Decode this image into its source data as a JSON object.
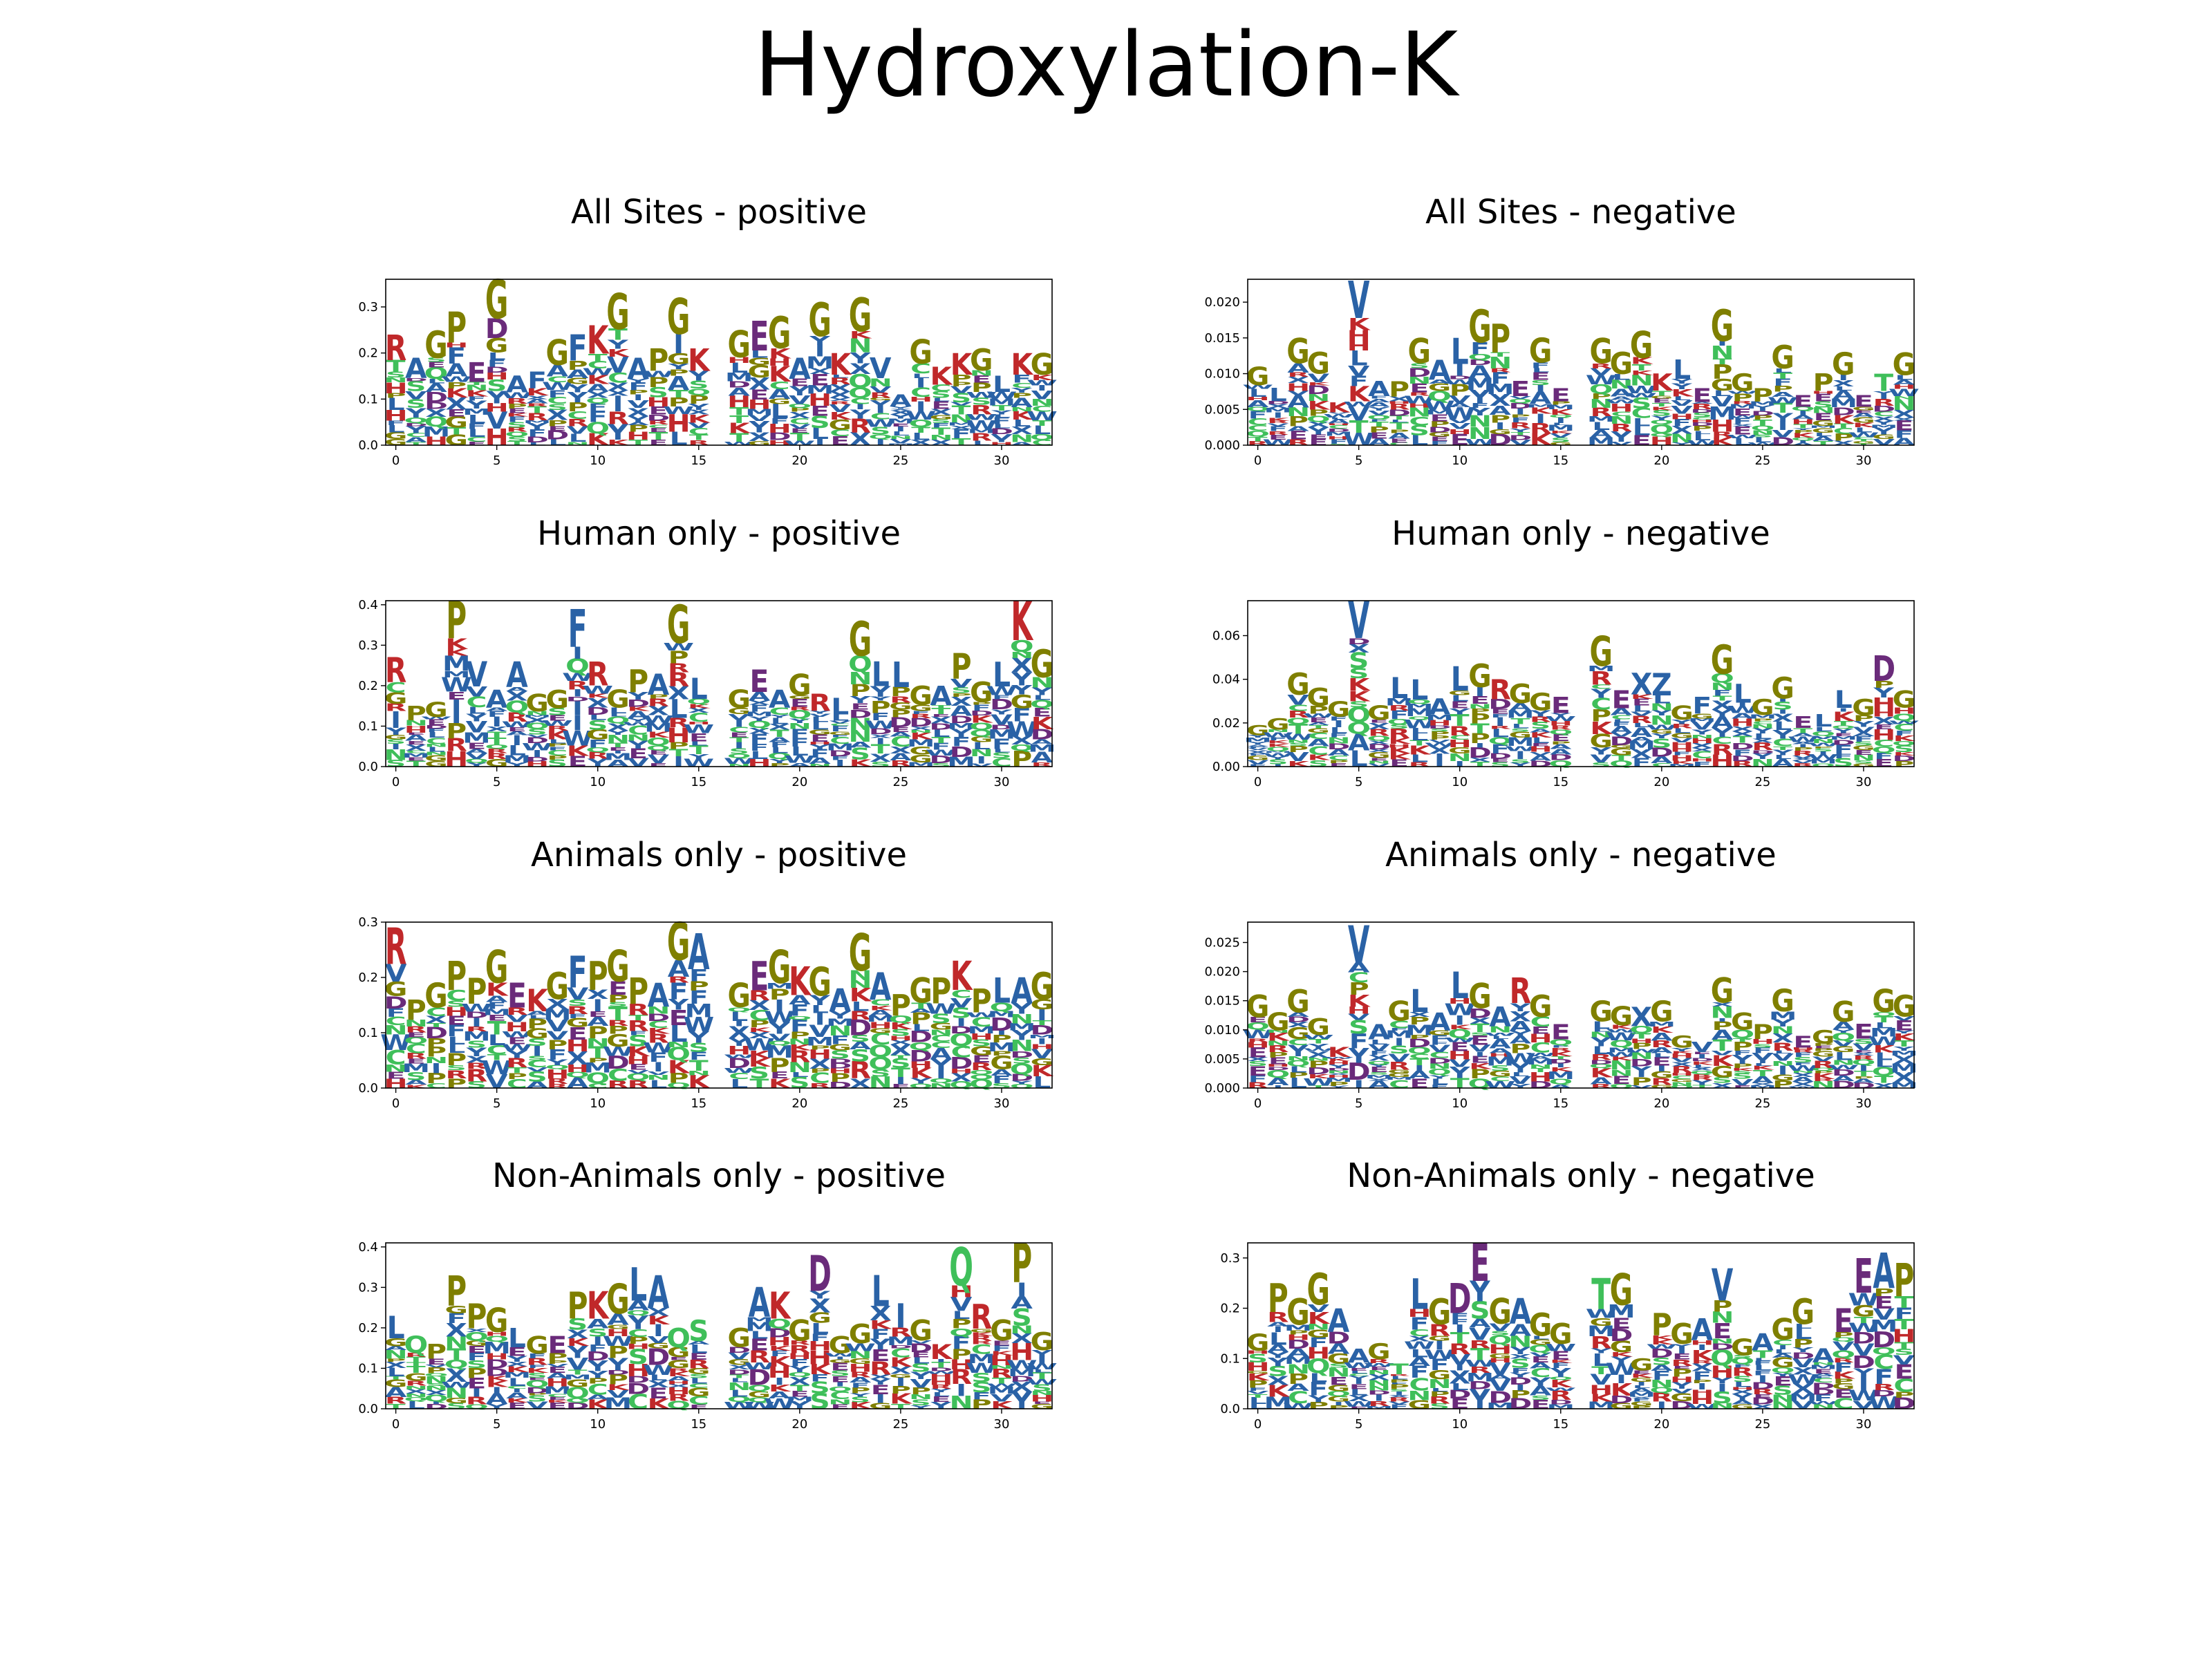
{
  "figure": {
    "title": "Hydroxylation-K",
    "x_ticks": [
      0,
      5,
      10,
      15,
      20,
      25,
      30
    ],
    "x_range": [
      -0.5,
      32.5
    ],
    "positions": 33,
    "gap_position": 16
  },
  "colors": {
    "G": "#7f7f00",
    "P": "#7f7f00",
    "E": "#6a2b7a",
    "D": "#6a2b7a",
    "K": "#c0282a",
    "R": "#c0282a",
    "H": "#c0282a",
    "A": "#2a62a6",
    "V": "#2a62a6",
    "L": "#2a62a6",
    "I": "#2a62a6",
    "F": "#2a62a6",
    "M": "#2a62a6",
    "W": "#2a62a6",
    "Y": "#2a62a6",
    "S": "#3fbf5a",
    "T": "#3fbf5a",
    "C": "#3fbf5a",
    "N": "#3fbf5a",
    "Q": "#3fbf5a",
    "X": "#2a62a6"
  },
  "chart_data": [
    {
      "type": "logo",
      "title": "All Sites - positive",
      "ylim": [
        0,
        0.36
      ],
      "yticks": [
        0.0,
        0.1,
        0.2,
        0.3
      ],
      "ytick_labels": [
        "0.0",
        "0.1",
        "0.2",
        "0.3"
      ],
      "seed": 11,
      "top_letters": [
        "R",
        "A",
        "G",
        "P",
        "E",
        "G",
        "A",
        "F",
        "G",
        "F",
        "K",
        "G",
        "A",
        "P",
        "G",
        "K",
        "",
        "G",
        "E",
        "G",
        "A",
        "G",
        "K",
        "G",
        "V",
        "A",
        "G",
        "K",
        "K",
        "G",
        "L",
        "K",
        "G"
      ],
      "heights": [
        0.24,
        0.19,
        0.25,
        0.29,
        0.18,
        0.36,
        0.15,
        0.16,
        0.23,
        0.24,
        0.26,
        0.33,
        0.19,
        0.21,
        0.32,
        0.21,
        0,
        0.25,
        0.27,
        0.28,
        0.19,
        0.31,
        0.2,
        0.32,
        0.19,
        0.11,
        0.23,
        0.17,
        0.2,
        0.21,
        0.15,
        0.2,
        0.2
      ]
    },
    {
      "type": "logo",
      "title": "All Sites - negative",
      "ylim": [
        0,
        0.0232
      ],
      "yticks": [
        0.0,
        0.005,
        0.01,
        0.015,
        0.02
      ],
      "ytick_labels": [
        "0.000",
        "0.005",
        "0.010",
        "0.015",
        "0.020"
      ],
      "seed": 23,
      "top_letters": [
        "G",
        "L",
        "G",
        "G",
        "K",
        "V",
        "A",
        "P",
        "G",
        "A",
        "L",
        "G",
        "P",
        "E",
        "G",
        "E",
        "",
        "G",
        "G",
        "G",
        "K",
        "L",
        "E",
        "G",
        "G",
        "P",
        "G",
        "E",
        "P",
        "G",
        "E",
        "T",
        "G"
      ],
      "heights": [
        0.011,
        0.008,
        0.015,
        0.013,
        0.006,
        0.023,
        0.009,
        0.009,
        0.015,
        0.012,
        0.015,
        0.019,
        0.017,
        0.009,
        0.015,
        0.008,
        0,
        0.015,
        0.013,
        0.016,
        0.01,
        0.012,
        0.008,
        0.019,
        0.01,
        0.008,
        0.014,
        0.007,
        0.01,
        0.013,
        0.007,
        0.01,
        0.013
      ]
    },
    {
      "type": "logo",
      "title": "Human only - positive",
      "ylim": [
        0,
        0.41
      ],
      "yticks": [
        0.0,
        0.1,
        0.2,
        0.3,
        0.4
      ],
      "ytick_labels": [
        "0.0",
        "0.1",
        "0.2",
        "0.3",
        "0.4"
      ],
      "seed": 37,
      "top_letters": [
        "R",
        "P",
        "G",
        "P",
        "V",
        "A",
        "A",
        "G",
        "G",
        "F",
        "R",
        "G",
        "P",
        "A",
        "G",
        "L",
        "",
        "G",
        "E",
        "A",
        "G",
        "R",
        "L",
        "G",
        "L",
        "L",
        "G",
        "A",
        "P",
        "G",
        "L",
        "K",
        "G"
      ],
      "heights": [
        0.27,
        0.15,
        0.16,
        0.41,
        0.26,
        0.19,
        0.26,
        0.18,
        0.19,
        0.39,
        0.26,
        0.19,
        0.24,
        0.23,
        0.4,
        0.22,
        0,
        0.19,
        0.24,
        0.19,
        0.23,
        0.18,
        0.17,
        0.36,
        0.26,
        0.26,
        0.2,
        0.2,
        0.28,
        0.21,
        0.26,
        0.41,
        0.29
      ]
    },
    {
      "type": "logo",
      "title": "Human only - negative",
      "ylim": [
        0,
        0.076
      ],
      "yticks": [
        0.0,
        0.02,
        0.04,
        0.06
      ],
      "ytick_labels": [
        "0.00",
        "0.02",
        "0.04",
        "0.06"
      ],
      "seed": 41,
      "top_letters": [
        "G",
        "G",
        "G",
        "G",
        "G",
        "V",
        "G",
        "L",
        "L",
        "A",
        "L",
        "G",
        "R",
        "G",
        "G",
        "E",
        "",
        "G",
        "E",
        "X",
        "Z",
        "G",
        "F",
        "G",
        "L",
        "G",
        "G",
        "E",
        "L",
        "L",
        "G",
        "D",
        "G"
      ],
      "heights": [
        0.019,
        0.022,
        0.043,
        0.036,
        0.03,
        0.076,
        0.028,
        0.041,
        0.04,
        0.031,
        0.046,
        0.047,
        0.04,
        0.038,
        0.034,
        0.032,
        0,
        0.06,
        0.035,
        0.043,
        0.043,
        0.028,
        0.032,
        0.056,
        0.038,
        0.031,
        0.041,
        0.023,
        0.024,
        0.035,
        0.031,
        0.051,
        0.035
      ]
    },
    {
      "type": "logo",
      "title": "Animals only - positive",
      "ylim": [
        0,
        0.3
      ],
      "yticks": [
        0.0,
        0.1,
        0.2,
        0.3
      ],
      "ytick_labels": [
        "0.0",
        "0.1",
        "0.2",
        "0.3"
      ],
      "seed": 53,
      "top_letters": [
        "R",
        "P",
        "G",
        "P",
        "P",
        "G",
        "E",
        "K",
        "G",
        "F",
        "P",
        "G",
        "P",
        "A",
        "G",
        "A",
        "",
        "G",
        "E",
        "G",
        "K",
        "G",
        "A",
        "G",
        "A",
        "P",
        "G",
        "P",
        "K",
        "P",
        "L",
        "A",
        "G"
      ],
      "heights": [
        0.29,
        0.16,
        0.19,
        0.23,
        0.2,
        0.25,
        0.19,
        0.18,
        0.21,
        0.24,
        0.23,
        0.25,
        0.2,
        0.19,
        0.3,
        0.28,
        0,
        0.19,
        0.23,
        0.25,
        0.22,
        0.22,
        0.18,
        0.28,
        0.21,
        0.17,
        0.2,
        0.2,
        0.23,
        0.18,
        0.2,
        0.2,
        0.21
      ]
    },
    {
      "type": "logo",
      "title": "Animals only - negative",
      "ylim": [
        0,
        0.0285
      ],
      "yticks": [
        0.0,
        0.005,
        0.01,
        0.015,
        0.02,
        0.025
      ],
      "ytick_labels": [
        "0.000",
        "0.005",
        "0.010",
        "0.015",
        "0.020",
        "0.025"
      ],
      "seed": 67,
      "top_letters": [
        "G",
        "G",
        "G",
        "G",
        "K",
        "V",
        "A",
        "G",
        "L",
        "A",
        "L",
        "G",
        "A",
        "R",
        "G",
        "E",
        "",
        "G",
        "G",
        "X",
        "G",
        "G",
        "V",
        "G",
        "G",
        "P",
        "G",
        "E",
        "G",
        "G",
        "E",
        "G",
        "G"
      ],
      "heights": [
        0.016,
        0.013,
        0.017,
        0.012,
        0.007,
        0.028,
        0.011,
        0.015,
        0.017,
        0.013,
        0.02,
        0.018,
        0.014,
        0.019,
        0.016,
        0.011,
        0,
        0.015,
        0.014,
        0.014,
        0.015,
        0.009,
        0.008,
        0.019,
        0.013,
        0.011,
        0.017,
        0.009,
        0.01,
        0.015,
        0.011,
        0.017,
        0.016
      ]
    },
    {
      "type": "logo",
      "title": "Non-Animals only - positive",
      "ylim": [
        0,
        0.41
      ],
      "yticks": [
        0.0,
        0.1,
        0.2,
        0.3,
        0.4
      ],
      "ytick_labels": [
        "0.0",
        "0.1",
        "0.2",
        "0.3",
        "0.4"
      ],
      "seed": 79,
      "top_letters": [
        "L",
        "Q",
        "P",
        "P",
        "P",
        "G",
        "L",
        "G",
        "E",
        "P",
        "K",
        "G",
        "L",
        "A",
        "Q",
        "S",
        "",
        "G",
        "A",
        "K",
        "G",
        "D",
        "G",
        "G",
        "L",
        "I",
        "G",
        "K",
        "Q",
        "R",
        "G",
        "P",
        "G"
      ],
      "heights": [
        0.23,
        0.18,
        0.16,
        0.33,
        0.26,
        0.25,
        0.2,
        0.18,
        0.18,
        0.29,
        0.29,
        0.31,
        0.35,
        0.33,
        0.2,
        0.22,
        0,
        0.2,
        0.3,
        0.29,
        0.22,
        0.38,
        0.18,
        0.21,
        0.33,
        0.26,
        0.22,
        0.16,
        0.4,
        0.26,
        0.22,
        0.41,
        0.19
      ]
    },
    {
      "type": "logo",
      "title": "Non-Animals only - negative",
      "ylim": [
        0,
        0.33
      ],
      "yticks": [
        0.0,
        0.1,
        0.2,
        0.3
      ],
      "ytick_labels": [
        "0.0",
        "0.1",
        "0.2",
        "0.3"
      ],
      "seed": 91,
      "top_letters": [
        "G",
        "P",
        "G",
        "G",
        "A",
        "A",
        "G",
        "T",
        "L",
        "G",
        "D",
        "E",
        "G",
        "A",
        "G",
        "G",
        "",
        "T",
        "G",
        "G",
        "P",
        "G",
        "A",
        "V",
        "G",
        "A",
        "G",
        "G",
        "A",
        "E",
        "E",
        "A",
        "P"
      ],
      "heights": [
        0.15,
        0.25,
        0.22,
        0.27,
        0.2,
        0.12,
        0.13,
        0.09,
        0.26,
        0.22,
        0.25,
        0.33,
        0.22,
        0.22,
        0.19,
        0.17,
        0,
        0.26,
        0.27,
        0.1,
        0.19,
        0.17,
        0.18,
        0.28,
        0.14,
        0.15,
        0.18,
        0.22,
        0.12,
        0.2,
        0.3,
        0.31,
        0.29
      ]
    }
  ]
}
